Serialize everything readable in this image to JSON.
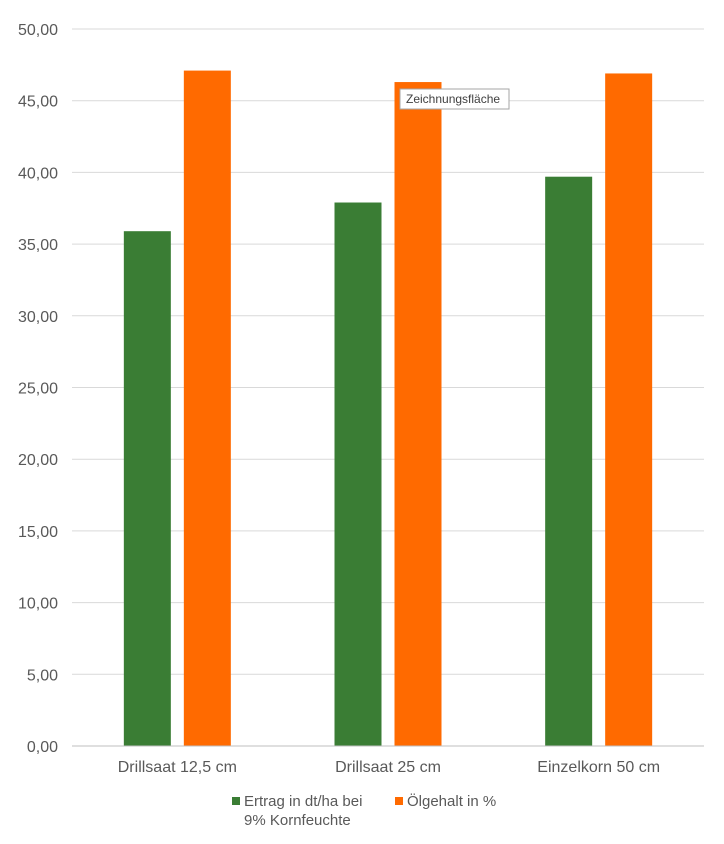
{
  "chart_data": {
    "type": "bar",
    "categories": [
      "Drillsaat 12,5 cm",
      "Drillsaat 25 cm",
      "Einzelkorn 50 cm"
    ],
    "series": [
      {
        "name": "Ertrag in dt/ha bei 9% Kornfeuchte",
        "legend_lines": [
          "Ertrag in dt/ha bei",
          "9% Kornfeuchte"
        ],
        "values": [
          35.9,
          37.9,
          39.7
        ],
        "color": "#3a7d34"
      },
      {
        "name": "Ölgehalt in %",
        "legend_lines": [
          "Ölgehalt in %"
        ],
        "values": [
          47.1,
          46.3,
          46.9
        ],
        "color": "#ff6a00"
      }
    ],
    "ylim": [
      0,
      50
    ],
    "yticks": [
      "0,00",
      "5,00",
      "10,00",
      "15,00",
      "20,00",
      "25,00",
      "30,00",
      "35,00",
      "40,00",
      "45,00",
      "50,00"
    ],
    "grid": true,
    "legend_position": "bottom",
    "title": "",
    "xlabel": "",
    "ylabel": ""
  },
  "tooltip": {
    "label": "Zeichnungsfläche"
  }
}
